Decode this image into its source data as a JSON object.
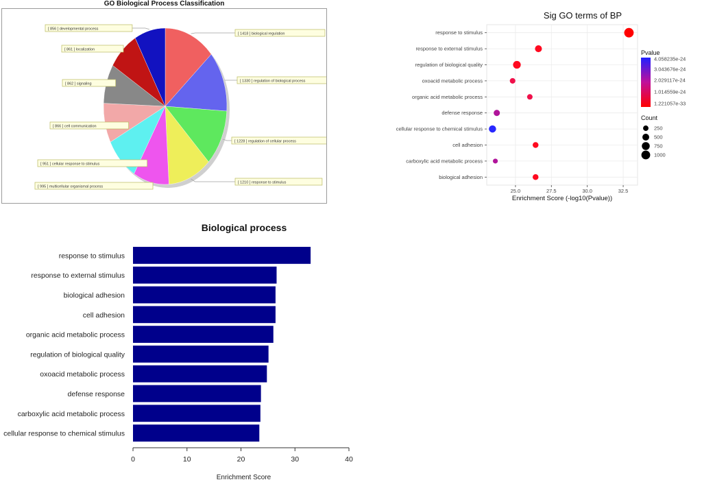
{
  "chart_data": [
    {
      "type": "pie",
      "title": "GO Biological Process Classification",
      "slices": [
        {
          "label": "biological regulation",
          "value": 1418,
          "color": "#f06060"
        },
        {
          "label": "regulation of biological process",
          "value": 1330,
          "color": "#6464ee"
        },
        {
          "label": "regulation of cellular process",
          "value": 1228,
          "color": "#5ee85e"
        },
        {
          "label": "response to stimulus",
          "value": 1210,
          "color": "#eeee5a"
        },
        {
          "label": "multicellular organismal process",
          "value": 995,
          "color": "#ee55ee"
        },
        {
          "label": "cellular response to stimulus",
          "value": 951,
          "color": "#5ef0f0"
        },
        {
          "label": "cell communication",
          "value": 866,
          "color": "#f2a8a8"
        },
        {
          "label": "signaling",
          "value": 862,
          "color": "#888888"
        },
        {
          "label": "localization",
          "value": 861,
          "color": "#c01414"
        },
        {
          "label": "developmental process",
          "value": 856,
          "color": "#1212c0"
        }
      ]
    },
    {
      "type": "scatter",
      "title": "Sig GO terms of BP",
      "xlabel": "Enrichment Score (-log10(Pvalue))",
      "ylabel": "",
      "xlim": [
        23.0,
        33.5
      ],
      "xticks": [
        "25.0",
        "27.5",
        "30.0",
        "32.5"
      ],
      "terms": [
        "response to stimulus",
        "response to external stimulus",
        "regulation of biological quality",
        "oxoacid metabolic process",
        "organic acid metabolic process",
        "defense response",
        "cellular response to chemical stimulus",
        "cell adhesion",
        "carboxylic acid metabolic process",
        "biological adhesion"
      ],
      "x": [
        32.9,
        26.6,
        25.1,
        24.8,
        26.0,
        23.7,
        23.4,
        26.4,
        23.6,
        26.4
      ],
      "count": [
        1210,
        520,
        700,
        270,
        260,
        380,
        580,
        310,
        180,
        310
      ],
      "pvalue_color": [
        "#ff0000",
        "#ff0a20",
        "#ff0a20",
        "#f0104a",
        "#f0104a",
        "#b0149a",
        "#2828ff",
        "#ff0a20",
        "#b0149a",
        "#ff0a20"
      ],
      "legend": {
        "pvalue_title": "Pvalue",
        "pvalue_labels": [
          "4.058235e-24",
          "3.043676e-24",
          "2.029117e-24",
          "1.014559e-24",
          "1.221057e-33"
        ],
        "count_title": "Count",
        "count_labels": [
          "250",
          "500",
          "750",
          "1000"
        ],
        "count_values": [
          250,
          500,
          750,
          1000
        ],
        "placement": "right"
      }
    },
    {
      "type": "bar",
      "orientation": "horizontal",
      "title": "Biological process",
      "xlabel": "Enrichment Score",
      "ylabel": "",
      "xlim": [
        0,
        40
      ],
      "xticks": [
        "0",
        "10",
        "20",
        "30",
        "40"
      ],
      "categories": [
        "response to stimulus",
        "response to external stimulus",
        "biological adhesion",
        "cell adhesion",
        "organic acid metabolic process",
        "regulation of biological quality",
        "oxoacid metabolic process",
        "defense response",
        "carboxylic acid metabolic process",
        "cellular response to chemical stimulus"
      ],
      "values": [
        32.9,
        26.6,
        26.4,
        26.4,
        26.0,
        25.1,
        24.8,
        23.7,
        23.6,
        23.4
      ],
      "bar_color": "#00008b"
    }
  ]
}
